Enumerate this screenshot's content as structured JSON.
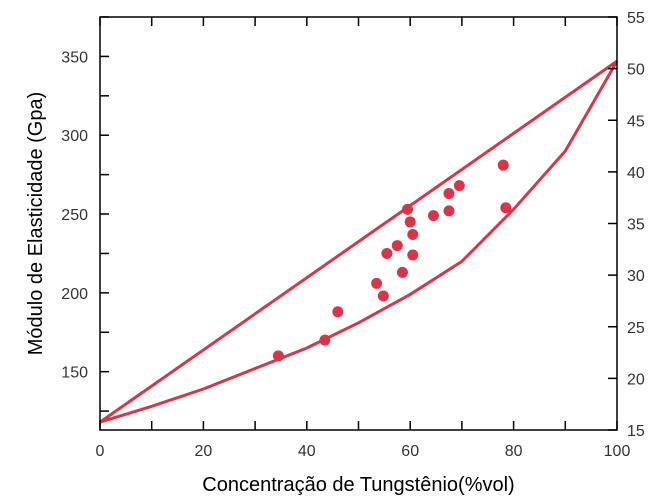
{
  "chart_data": {
    "type": "scatter",
    "title": "",
    "xlabel": "Concentração de Tungstênio(%vol)",
    "ylabel": "Módulo de Elasticidade (Gpa)",
    "xlim": [
      0,
      100
    ],
    "ylim": [
      113,
      375
    ],
    "x_ticks": [
      0,
      20,
      40,
      60,
      80,
      100
    ],
    "y_ticks": [
      150,
      200,
      250,
      300,
      350
    ],
    "y2lim": [
      15,
      55
    ],
    "y2_ticks": [
      15,
      20,
      25,
      30,
      35,
      40,
      45,
      50,
      55
    ],
    "grid": false,
    "colors": {
      "marker": "#d9344a",
      "axis": "#000000"
    },
    "series": [
      {
        "points": [
          [
            34.5,
            160
          ],
          [
            43.5,
            170
          ],
          [
            46,
            188
          ],
          [
            53.5,
            206
          ],
          [
            54.8,
            198
          ],
          [
            55.5,
            225
          ],
          [
            57.5,
            230
          ],
          [
            58.5,
            213
          ],
          [
            59.5,
            253
          ],
          [
            60,
            245
          ],
          [
            60.5,
            237
          ],
          [
            60.5,
            224
          ],
          [
            64.5,
            249
          ],
          [
            67.5,
            252
          ],
          [
            67.5,
            263
          ],
          [
            69.5,
            268
          ],
          [
            78,
            281
          ],
          [
            78.5,
            254
          ]
        ]
      }
    ],
    "bounds": {
      "upper": {
        "x": [
          0,
          100
        ],
        "y": [
          118,
          347
        ]
      },
      "lower": {
        "x": [
          0,
          10,
          20,
          30,
          40,
          50,
          60,
          70,
          80,
          90,
          100
        ],
        "y": [
          118,
          128,
          139,
          152,
          165,
          181,
          199,
          220,
          253,
          290,
          347
        ]
      }
    }
  }
}
